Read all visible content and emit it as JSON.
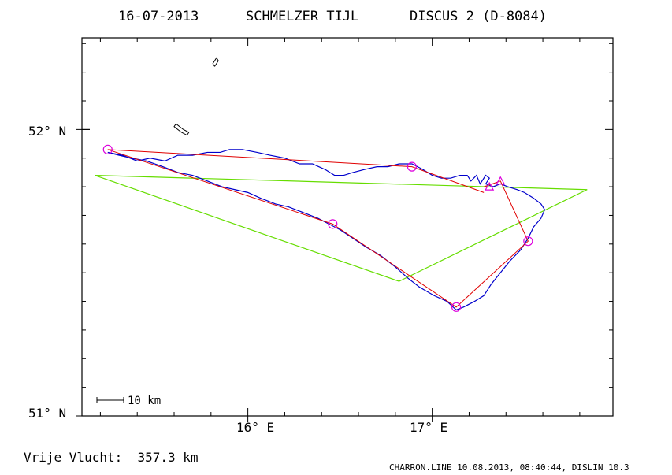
{
  "header": {
    "date": "16-07-2013",
    "pilot": "SCHMELZER TIJL",
    "glider": "DISCUS 2 (D-8084)"
  },
  "axes": {
    "lat_labels": [
      {
        "value": 52.0,
        "text": "52° N"
      },
      {
        "value": 51.0,
        "text": "51° N"
      }
    ],
    "lon_labels": [
      {
        "value": 16.0,
        "text": "16° E"
      },
      {
        "value": 17.0,
        "text": "17° E"
      }
    ],
    "lon_range": [
      15.1,
      17.98
    ],
    "lat_range": [
      51.0,
      52.32
    ]
  },
  "scale_bar": {
    "label": "10 km"
  },
  "footer": {
    "distance": "Vrije Vlucht:  357.3 km",
    "software": "CHARRON.LINE 10.08.2013, 08:40:44, DISLIN 10.3"
  },
  "colors": {
    "track": "#0000cc",
    "task_legs": "#e00000",
    "fai_triangle": "#66dd00",
    "turnpoints": "#dd00dd",
    "frame": "#000000"
  },
  "map_data": {
    "fai_triangle": [
      {
        "lon": 15.17,
        "lat": 51.84
      },
      {
        "lon": 16.82,
        "lat": 51.47
      },
      {
        "lon": 17.84,
        "lat": 51.79
      },
      {
        "lon": 15.17,
        "lat": 51.84
      }
    ],
    "flight_path": [
      {
        "lon": 17.28,
        "lat": 51.78
      },
      {
        "lon": 16.89,
        "lat": 51.87
      },
      {
        "lon": 15.24,
        "lat": 51.93
      },
      {
        "lon": 16.46,
        "lat": 51.67
      },
      {
        "lon": 17.13,
        "lat": 51.38
      },
      {
        "lon": 17.52,
        "lat": 51.61
      },
      {
        "lon": 17.37,
        "lat": 51.82
      },
      {
        "lon": 17.28,
        "lat": 51.8
      }
    ],
    "turnpoints_circles": [
      {
        "lon": 15.24,
        "lat": 51.93
      },
      {
        "lon": 16.89,
        "lat": 51.87
      },
      {
        "lon": 16.46,
        "lat": 51.67
      },
      {
        "lon": 17.13,
        "lat": 51.38
      },
      {
        "lon": 17.52,
        "lat": 51.61
      }
    ],
    "start_finish_triangles": [
      {
        "lon": 17.31,
        "lat": 51.8
      },
      {
        "lon": 17.37,
        "lat": 51.82
      }
    ],
    "track_log": [
      [
        15.24,
        51.92
      ],
      [
        15.32,
        51.91
      ],
      [
        15.4,
        51.89
      ],
      [
        15.47,
        51.9
      ],
      [
        15.55,
        51.89
      ],
      [
        15.62,
        51.91
      ],
      [
        15.7,
        51.91
      ],
      [
        15.78,
        51.92
      ],
      [
        15.85,
        51.92
      ],
      [
        15.9,
        51.93
      ],
      [
        15.97,
        51.93
      ],
      [
        16.05,
        51.92
      ],
      [
        16.12,
        51.91
      ],
      [
        16.2,
        51.9
      ],
      [
        16.28,
        51.88
      ],
      [
        16.35,
        51.88
      ],
      [
        16.42,
        51.86
      ],
      [
        16.47,
        51.84
      ],
      [
        16.52,
        51.84
      ],
      [
        16.57,
        51.85
      ],
      [
        16.63,
        51.86
      ],
      [
        16.7,
        51.87
      ],
      [
        16.76,
        51.87
      ],
      [
        16.82,
        51.88
      ],
      [
        16.89,
        51.88
      ],
      [
        16.95,
        51.86
      ],
      [
        17.0,
        51.84
      ],
      [
        17.05,
        51.83
      ],
      [
        17.1,
        51.83
      ],
      [
        17.15,
        51.84
      ],
      [
        17.19,
        51.84
      ],
      [
        17.21,
        51.82
      ],
      [
        17.24,
        51.84
      ],
      [
        17.26,
        51.81
      ],
      [
        17.29,
        51.84
      ],
      [
        17.31,
        51.83
      ],
      [
        17.29,
        51.81
      ],
      [
        17.33,
        51.8
      ],
      [
        17.37,
        51.81
      ],
      [
        17.41,
        51.8
      ],
      [
        17.46,
        51.79
      ],
      [
        17.5,
        51.78
      ],
      [
        17.55,
        51.76
      ],
      [
        17.59,
        51.74
      ],
      [
        17.61,
        51.72
      ],
      [
        17.59,
        51.69
      ],
      [
        17.55,
        51.66
      ],
      [
        17.52,
        51.62
      ],
      [
        17.48,
        51.58
      ],
      [
        17.42,
        51.54
      ],
      [
        17.37,
        51.5
      ],
      [
        17.32,
        51.46
      ],
      [
        17.28,
        51.42
      ],
      [
        17.23,
        51.4
      ],
      [
        17.17,
        51.38
      ],
      [
        17.13,
        51.37
      ],
      [
        17.08,
        51.4
      ],
      [
        17.01,
        51.42
      ],
      [
        16.93,
        51.45
      ],
      [
        16.87,
        51.48
      ],
      [
        16.8,
        51.52
      ],
      [
        16.72,
        51.56
      ],
      [
        16.64,
        51.59
      ],
      [
        16.57,
        51.62
      ],
      [
        16.5,
        51.65
      ],
      [
        16.44,
        51.67
      ],
      [
        16.38,
        51.69
      ],
      [
        16.3,
        51.71
      ],
      [
        16.22,
        51.73
      ],
      [
        16.15,
        51.74
      ],
      [
        16.07,
        51.76
      ],
      [
        16.0,
        51.78
      ],
      [
        15.93,
        51.79
      ],
      [
        15.86,
        51.8
      ],
      [
        15.78,
        51.82
      ],
      [
        15.7,
        51.84
      ],
      [
        15.62,
        51.85
      ],
      [
        15.54,
        51.87
      ],
      [
        15.45,
        51.89
      ],
      [
        15.37,
        51.9
      ],
      [
        15.3,
        51.91
      ],
      [
        15.24,
        51.92
      ]
    ],
    "lakes": [
      [
        [
          15.82,
          52.22
        ],
        [
          15.84,
          52.24
        ],
        [
          15.83,
          52.25
        ],
        [
          15.81,
          52.23
        ],
        [
          15.82,
          52.22
        ]
      ],
      [
        [
          15.61,
          52.02
        ],
        [
          15.65,
          52.0
        ],
        [
          15.68,
          51.99
        ],
        [
          15.67,
          51.98
        ],
        [
          15.64,
          51.99
        ],
        [
          15.6,
          52.01
        ],
        [
          15.61,
          52.02
        ]
      ]
    ]
  }
}
